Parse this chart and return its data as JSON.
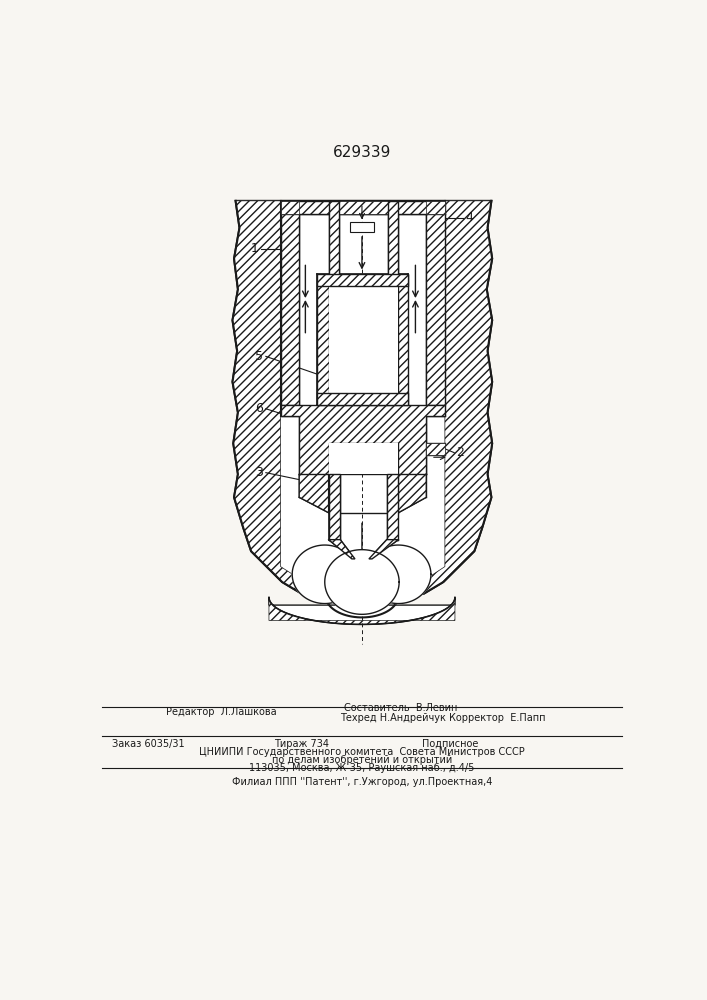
{
  "patent_number": "629339",
  "background_color": "#f8f6f2",
  "line_color": "#1a1a1a",
  "hatch_color": "#1a1a1a",
  "sostavitel_line": "Составитель  В.Левин",
  "tehred_line": "Техред Н.Андрейчук Корректор  Е.Папп",
  "filial_line": "Филиал ППП ''Патент'', г.Ужгород, ул.Проектная,4"
}
